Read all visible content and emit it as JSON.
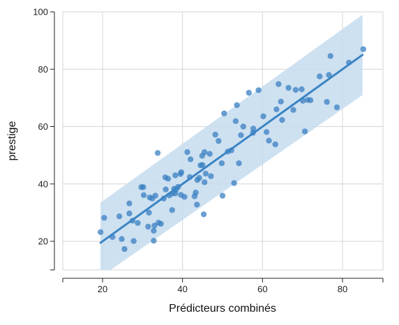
{
  "chart_data": {
    "type": "scatter",
    "xlabel": "Prédicteurs combinés",
    "ylabel": "prestige",
    "xlim": [
      10,
      90
    ],
    "ylim": [
      8,
      100
    ],
    "x_ticks": [
      20,
      40,
      60,
      80
    ],
    "y_ticks": [
      20,
      40,
      60,
      80,
      100
    ],
    "grid": true,
    "colors": {
      "points": "#3a7fc1",
      "line": "#3a84c4",
      "band": "#c6dcee",
      "grid": "#d4d4d4",
      "axis": "#222222"
    },
    "fit_line": {
      "x": [
        19.5,
        85
      ],
      "y": [
        19.5,
        85
      ]
    },
    "prediction_band": {
      "x": [
        19.5,
        85
      ],
      "lower": [
        5.5,
        71
      ],
      "upper": [
        33.5,
        99
      ]
    },
    "points": [
      {
        "x": 19.5,
        "y": 23.2
      },
      {
        "x": 20.4,
        "y": 28.2
      },
      {
        "x": 22.5,
        "y": 21.5
      },
      {
        "x": 24.2,
        "y": 28.7
      },
      {
        "x": 24.8,
        "y": 20.8
      },
      {
        "x": 25.5,
        "y": 17.3
      },
      {
        "x": 26.7,
        "y": 33.2
      },
      {
        "x": 26.7,
        "y": 29.7
      },
      {
        "x": 27.5,
        "y": 27.2
      },
      {
        "x": 27.8,
        "y": 20.1
      },
      {
        "x": 28.8,
        "y": 26.4
      },
      {
        "x": 29.7,
        "y": 38.9
      },
      {
        "x": 30.2,
        "y": 38.9
      },
      {
        "x": 30.3,
        "y": 36.1
      },
      {
        "x": 31.4,
        "y": 25.1
      },
      {
        "x": 31.6,
        "y": 30.0
      },
      {
        "x": 31.8,
        "y": 35.3
      },
      {
        "x": 32.4,
        "y": 34.9
      },
      {
        "x": 32.8,
        "y": 23.7
      },
      {
        "x": 32.8,
        "y": 20.2
      },
      {
        "x": 33.0,
        "y": 25.5
      },
      {
        "x": 33.2,
        "y": 35.9
      },
      {
        "x": 33.8,
        "y": 50.8
      },
      {
        "x": 34.0,
        "y": 26.5
      },
      {
        "x": 34.6,
        "y": 26.1
      },
      {
        "x": 35.3,
        "y": 34.9
      },
      {
        "x": 35.7,
        "y": 42.3
      },
      {
        "x": 35.8,
        "y": 38.1
      },
      {
        "x": 36.4,
        "y": 41.8
      },
      {
        "x": 36.7,
        "y": 36.0
      },
      {
        "x": 37.4,
        "y": 30.9
      },
      {
        "x": 37.5,
        "y": 36.7
      },
      {
        "x": 37.9,
        "y": 38.3
      },
      {
        "x": 38.2,
        "y": 36.7
      },
      {
        "x": 38.2,
        "y": 43.0
      },
      {
        "x": 38.4,
        "y": 38.0
      },
      {
        "x": 38.9,
        "y": 39.0
      },
      {
        "x": 39.5,
        "y": 43.5
      },
      {
        "x": 39.6,
        "y": 36.2
      },
      {
        "x": 39.7,
        "y": 44.1
      },
      {
        "x": 40.5,
        "y": 35.5
      },
      {
        "x": 41.2,
        "y": 51.1
      },
      {
        "x": 41.8,
        "y": 42.4
      },
      {
        "x": 42.0,
        "y": 48.6
      },
      {
        "x": 43.0,
        "y": 35.7
      },
      {
        "x": 43.3,
        "y": 37.0
      },
      {
        "x": 43.6,
        "y": 32.8
      },
      {
        "x": 43.7,
        "y": 41.4
      },
      {
        "x": 44.2,
        "y": 42.1
      },
      {
        "x": 44.5,
        "y": 46.5
      },
      {
        "x": 44.9,
        "y": 49.8
      },
      {
        "x": 45.0,
        "y": 46.6
      },
      {
        "x": 45.3,
        "y": 29.4
      },
      {
        "x": 45.5,
        "y": 51.1
      },
      {
        "x": 45.5,
        "y": 40.6
      },
      {
        "x": 45.8,
        "y": 43.6
      },
      {
        "x": 46.8,
        "y": 50.5
      },
      {
        "x": 47.1,
        "y": 42.7
      },
      {
        "x": 48.2,
        "y": 57.2
      },
      {
        "x": 49.0,
        "y": 55.0
      },
      {
        "x": 49.8,
        "y": 47.2
      },
      {
        "x": 50.0,
        "y": 35.9
      },
      {
        "x": 50.4,
        "y": 64.6
      },
      {
        "x": 51.3,
        "y": 51.3
      },
      {
        "x": 52.2,
        "y": 51.7
      },
      {
        "x": 52.9,
        "y": 40.3
      },
      {
        "x": 53.3,
        "y": 61.9
      },
      {
        "x": 53.6,
        "y": 67.5
      },
      {
        "x": 54.1,
        "y": 47.2
      },
      {
        "x": 54.6,
        "y": 57.0
      },
      {
        "x": 55.2,
        "y": 60.0
      },
      {
        "x": 56.6,
        "y": 71.8
      },
      {
        "x": 57.6,
        "y": 57.8
      },
      {
        "x": 57.7,
        "y": 59.3
      },
      {
        "x": 59.0,
        "y": 72.7
      },
      {
        "x": 60.2,
        "y": 63.6
      },
      {
        "x": 61.0,
        "y": 58.1
      },
      {
        "x": 61.6,
        "y": 55.1
      },
      {
        "x": 63.2,
        "y": 53.8
      },
      {
        "x": 63.5,
        "y": 66.0
      },
      {
        "x": 64.0,
        "y": 74.8
      },
      {
        "x": 64.6,
        "y": 68.7
      },
      {
        "x": 64.9,
        "y": 62.3
      },
      {
        "x": 66.5,
        "y": 73.5
      },
      {
        "x": 67.7,
        "y": 65.8
      },
      {
        "x": 68.3,
        "y": 72.8
      },
      {
        "x": 69.8,
        "y": 73.0
      },
      {
        "x": 70.1,
        "y": 69.0
      },
      {
        "x": 70.6,
        "y": 58.3
      },
      {
        "x": 71.3,
        "y": 69.3
      },
      {
        "x": 72.0,
        "y": 69.2
      },
      {
        "x": 74.3,
        "y": 77.5
      },
      {
        "x": 76.1,
        "y": 68.6
      },
      {
        "x": 76.6,
        "y": 78.0
      },
      {
        "x": 77.0,
        "y": 84.6
      },
      {
        "x": 78.6,
        "y": 66.7
      },
      {
        "x": 81.6,
        "y": 82.3
      },
      {
        "x": 85.2,
        "y": 87.0
      }
    ]
  }
}
